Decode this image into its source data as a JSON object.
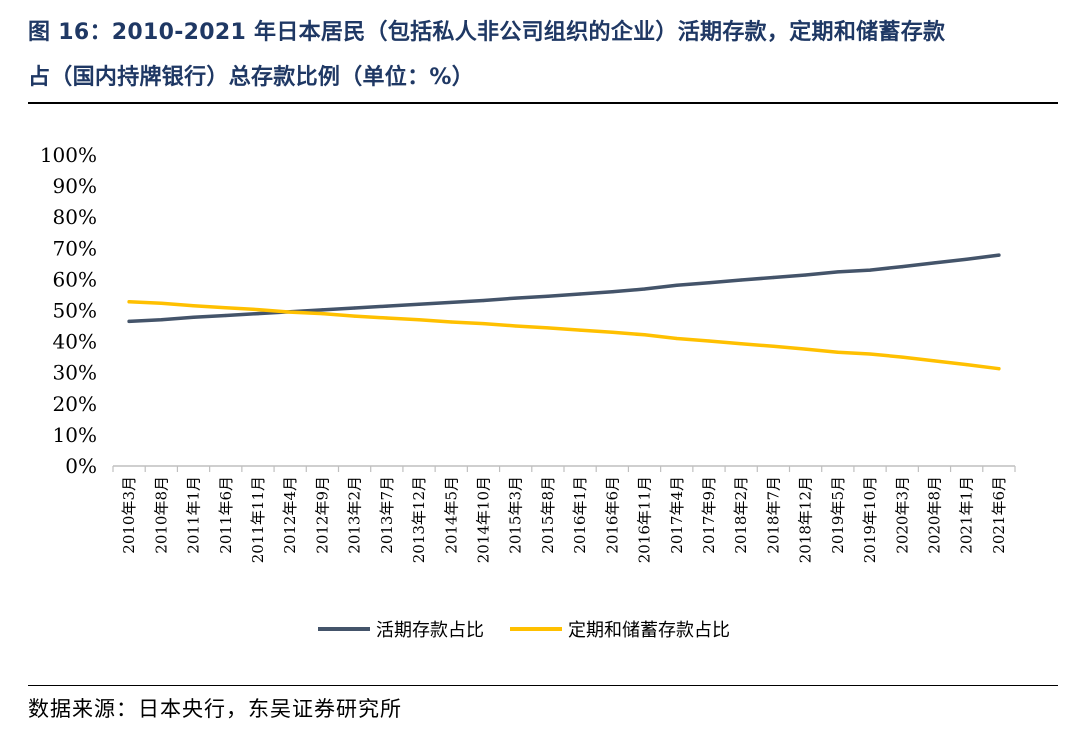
{
  "title_line1": "图 16：2010-2021 年日本居民（包括私人非公司组织的企业）活期存款，定期和储蓄存款",
  "title_line2": "占（国内持牌银行）总存款比例（单位：%）",
  "source": "数据来源：日本央行，东吴证券研究所",
  "colors": {
    "series1": "#44546a",
    "series2": "#ffc000",
    "title": "#1f3864"
  },
  "chart_data": {
    "type": "line",
    "ylim": [
      0,
      100
    ],
    "yticks": [
      "0%",
      "10%",
      "20%",
      "30%",
      "40%",
      "50%",
      "60%",
      "70%",
      "80%",
      "90%",
      "100%"
    ],
    "categories": [
      "2010年3月",
      "2010年8月",
      "2011年1月",
      "2011年6月",
      "2011年11月",
      "2012年4月",
      "2012年9月",
      "2013年2月",
      "2013年7月",
      "2013年12月",
      "2014年5月",
      "2014年10月",
      "2015年3月",
      "2015年8月",
      "2016年1月",
      "2016年6月",
      "2016年11月",
      "2017年4月",
      "2017年9月",
      "2018年2月",
      "2018年7月",
      "2018年12月",
      "2019年5月",
      "2019年10月",
      "2020年3月",
      "2020年8月",
      "2021年1月",
      "2021年6月"
    ],
    "legend_position": "bottom",
    "grid": false,
    "series": [
      {
        "name": "活期存款占比",
        "values": [
          46.5,
          47.0,
          47.8,
          48.4,
          49.0,
          49.6,
          50.2,
          50.8,
          51.4,
          52.0,
          52.6,
          53.2,
          54.0,
          54.6,
          55.3,
          56.0,
          56.9,
          58.1,
          58.9,
          59.8,
          60.6,
          61.4,
          62.4,
          63.0,
          64.1,
          65.3,
          66.5,
          67.8
        ]
      },
      {
        "name": "定期和储蓄存款占比",
        "values": [
          52.8,
          52.3,
          51.5,
          50.9,
          50.3,
          49.5,
          49.0,
          48.2,
          47.6,
          47.0,
          46.3,
          45.8,
          45.0,
          44.4,
          43.7,
          43.0,
          42.2,
          41.0,
          40.2,
          39.3,
          38.5,
          37.6,
          36.6,
          36.0,
          35.0,
          33.8,
          32.6,
          31.3
        ]
      }
    ]
  }
}
